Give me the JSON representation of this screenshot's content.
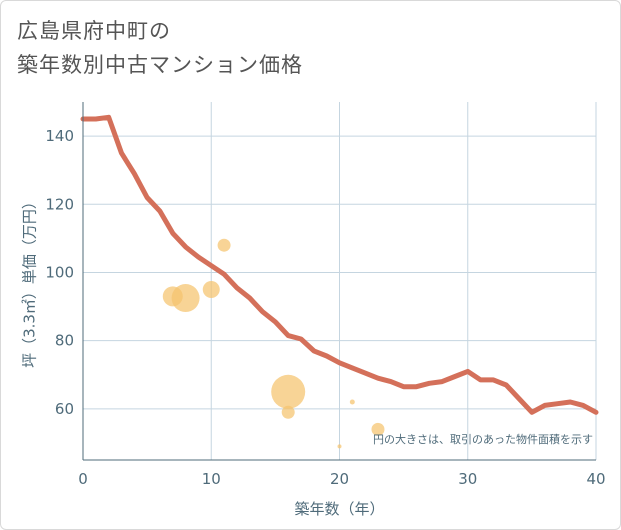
{
  "title": {
    "line1": "広島県府中町の",
    "line2": "築年数別中古マンション価格"
  },
  "chart_data": {
    "type": "scatter+line",
    "xlabel": "築年数（年）",
    "ylabel": "坪（3.3㎡）単価（万円）",
    "xlim": [
      0,
      40
    ],
    "ylim": [
      45,
      150
    ],
    "x_ticks": [
      0,
      10,
      20,
      30,
      40
    ],
    "y_ticks": [
      60,
      80,
      100,
      120,
      140
    ],
    "grid": true,
    "note": "円の大きさは、取引のあった物件面積を示す",
    "colors": {
      "line": "#d4705a",
      "bubble": "#f5c46e",
      "grid": "#c5d5e0",
      "axis": "#4f6b7a"
    },
    "trend_line": {
      "x": [
        0,
        1,
        2,
        3,
        4,
        5,
        6,
        7,
        8,
        9,
        10,
        11,
        12,
        13,
        14,
        15,
        16,
        17,
        18,
        19,
        20,
        21,
        22,
        23,
        24,
        25,
        26,
        27,
        28,
        29,
        30,
        31,
        32,
        33,
        34,
        35,
        36,
        37,
        38,
        39,
        40
      ],
      "y": [
        145,
        145,
        145.5,
        135,
        129,
        122,
        118,
        111.5,
        107.5,
        104.5,
        102,
        99.5,
        95.5,
        92.5,
        88.5,
        85.5,
        81.5,
        80.5,
        77,
        75.5,
        73.5,
        72,
        70.5,
        69,
        68,
        66.5,
        66.5,
        67.5,
        68,
        69.5,
        71,
        68.5,
        68.5,
        67,
        63,
        59,
        61,
        61.5,
        62,
        61,
        59
      ]
    },
    "bubbles": [
      {
        "x": 7,
        "y": 93,
        "size": 20
      },
      {
        "x": 8,
        "y": 92.5,
        "size": 28
      },
      {
        "x": 10,
        "y": 95,
        "size": 17
      },
      {
        "x": 11,
        "y": 108,
        "size": 13
      },
      {
        "x": 16,
        "y": 65,
        "size": 34
      },
      {
        "x": 16,
        "y": 59,
        "size": 13
      },
      {
        "x": 20,
        "y": 49,
        "size": 4
      },
      {
        "x": 21,
        "y": 62,
        "size": 5
      },
      {
        "x": 23,
        "y": 54,
        "size": 13
      }
    ]
  }
}
